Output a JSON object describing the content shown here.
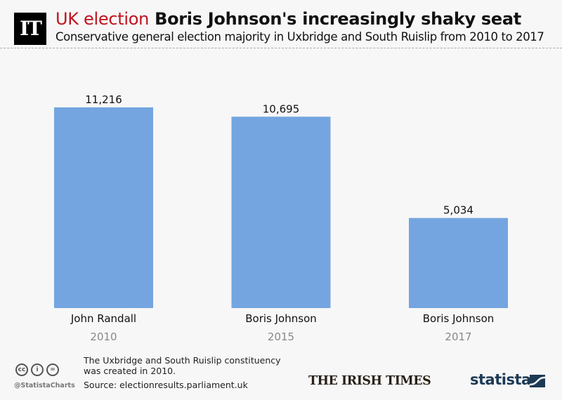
{
  "header": {
    "logo_text": "IT",
    "title_accent": "UK election",
    "title_main": "Boris Johnson's increasingly shaky seat",
    "subtitle": "Conservative general election majority in Uxbridge and South Ruislip from 2010 to 2017"
  },
  "footer": {
    "cc_icons": [
      "cc-icon",
      "by-icon",
      "nd-icon"
    ],
    "cc_glyphs": [
      "cc",
      "i",
      "="
    ],
    "handle": "@StatistaCharts",
    "note": "The Uxbridge and South Ruislip constituency was created in 2010.",
    "source": "Source: electionresults.parliament.uk",
    "publisher": "THE IRISH TIMES",
    "brand": "statista"
  },
  "colors": {
    "bar": "#74a5e0",
    "accent": "#c0141f",
    "year_text": "#888888",
    "brand": "#1d3a55"
  },
  "chart_data": {
    "type": "bar",
    "title": "UK election Boris Johnson's increasingly shaky seat",
    "subtitle": "Conservative general election majority in Uxbridge and South Ruislip from 2010 to 2017",
    "categories": [
      "2010",
      "2015",
      "2017"
    ],
    "candidates": [
      "John Randall",
      "Boris Johnson",
      "Boris Johnson"
    ],
    "values": [
      11216,
      10695,
      5034
    ],
    "value_labels": [
      "11,216",
      "10,695",
      "5,034"
    ],
    "xlabel": "",
    "ylabel": "",
    "ylim": [
      0,
      11216
    ],
    "grid": false,
    "legend": "none"
  }
}
